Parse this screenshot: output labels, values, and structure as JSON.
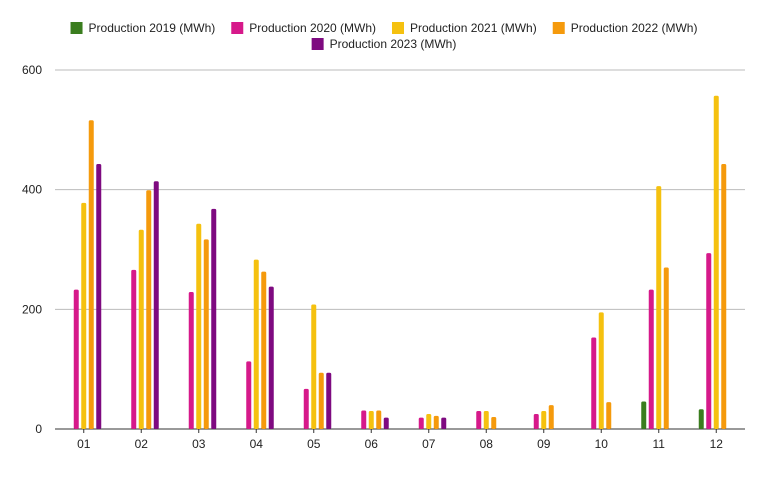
{
  "chart_data": {
    "type": "bar",
    "categories": [
      "01",
      "02",
      "03",
      "04",
      "05",
      "06",
      "07",
      "08",
      "09",
      "10",
      "11",
      "12"
    ],
    "series": [
      {
        "name": "Production 2019 (MWh)",
        "color": "#3a7d1e",
        "values": [
          0,
          0,
          0,
          0,
          0,
          0,
          0,
          0,
          0,
          0,
          46,
          33
        ]
      },
      {
        "name": "Production 2020 (MWh)",
        "color": "#d6198a",
        "values": [
          233,
          266,
          229,
          113,
          67,
          31,
          19,
          30,
          25,
          153,
          233,
          294
        ]
      },
      {
        "name": "Production 2021 (MWh)",
        "color": "#f5c10f",
        "values": [
          378,
          333,
          343,
          283,
          208,
          30,
          25,
          30,
          30,
          195,
          406,
          557
        ]
      },
      {
        "name": "Production 2022 (MWh)",
        "color": "#f59a0c",
        "values": [
          516,
          399,
          317,
          263,
          94,
          31,
          22,
          20,
          40,
          45,
          270,
          443
        ]
      },
      {
        "name": "Production 2023 (MWh)",
        "color": "#7e0a80",
        "values": [
          443,
          414,
          368,
          238,
          94,
          19,
          19,
          0,
          0,
          0,
          0,
          0
        ]
      }
    ],
    "ylim": [
      0,
      600
    ],
    "yticks": [
      0,
      200,
      400,
      600
    ],
    "title": "",
    "xlabel": "",
    "ylabel": "",
    "grid": true,
    "legend_position": "top-center"
  }
}
